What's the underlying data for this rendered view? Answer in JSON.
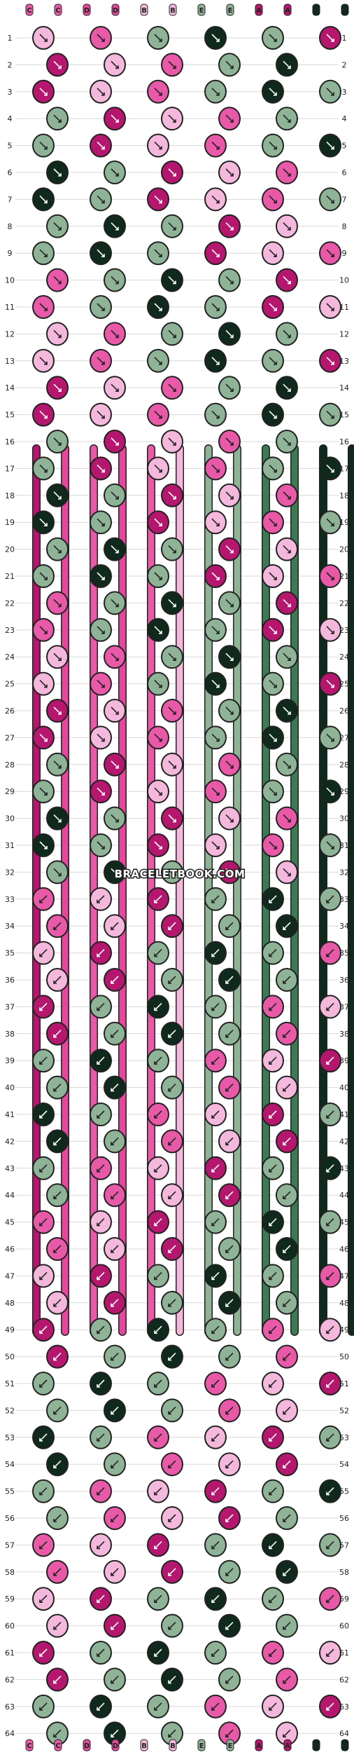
{
  "strand_letters": [
    "C",
    "C",
    "D",
    "D",
    "B",
    "B",
    "E",
    "E",
    "A",
    "A",
    "F",
    "F"
  ],
  "strand_colors": {
    "A": "#b5176e",
    "B": "#f4b8dc",
    "C": "#e85aa8",
    "D": "#e4479c",
    "E": "#8fb396",
    "F": "#0f2a1c",
    "G": "#3c7a54"
  },
  "rows": [
    1,
    2,
    3,
    4,
    5,
    6,
    7,
    8,
    9,
    10,
    11,
    12,
    13,
    14,
    15,
    16,
    17,
    18,
    19,
    20,
    21,
    22,
    23,
    24,
    25,
    26,
    27,
    28,
    29,
    30,
    31,
    32,
    33,
    34,
    35,
    36,
    37,
    38,
    39,
    40,
    41,
    42,
    43,
    44,
    45,
    46,
    47,
    48,
    49,
    50,
    51,
    52,
    53,
    54,
    55,
    56,
    57,
    58,
    59,
    60,
    61,
    62,
    63,
    64
  ],
  "watermark": "BRACELETBOOK.COM"
}
